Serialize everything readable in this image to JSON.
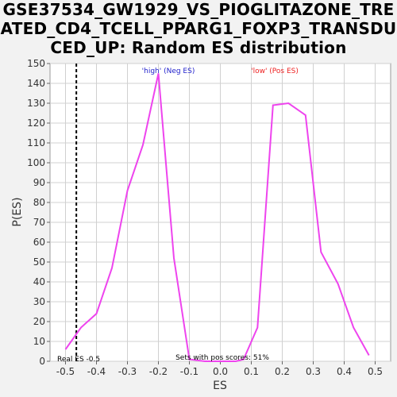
{
  "title_lines": [
    "GSE37534_GW1929_VS_PIOGLITAZONE_TRE",
    "ATED_CD4_TCELL_PPARG1_FOXP3_TRANSDU",
    "CED_UP: Random ES distribution"
  ],
  "legend": {
    "high": "'high' (Neg ES)",
    "low": "'low' (Pos ES)",
    "high_color": "#2222cc",
    "low_color": "#ee2222"
  },
  "annotations": {
    "real_es": "Real ES -0.5",
    "pos_scores": "Sets with pos scores: 51%"
  },
  "colors": {
    "line": "#ee44ee",
    "plot_bg": "#ffffff",
    "grid": "#d0d0d0"
  },
  "chart_data": {
    "type": "line",
    "xlabel": "ES",
    "ylabel": "P(ES)",
    "xlim": [
      -0.55,
      0.55
    ],
    "ylim": [
      0,
      150
    ],
    "xticks": [
      -0.5,
      -0.4,
      -0.3,
      -0.2,
      -0.1,
      0.0,
      0.1,
      0.2,
      0.3,
      0.4,
      0.5
    ],
    "xtick_labels": [
      "-0.5",
      "-0.4",
      "-0.3",
      "-0.2",
      "-0.1",
      "0.0",
      "0.1",
      "0.2",
      "0.3",
      "0.4",
      "0.5"
    ],
    "yticks": [
      0,
      10,
      20,
      30,
      40,
      50,
      60,
      70,
      80,
      90,
      100,
      110,
      120,
      130,
      140,
      150
    ],
    "real_es_value": -0.465,
    "grid": true,
    "series": [
      {
        "x": [
          -0.5,
          -0.45,
          -0.4,
          -0.35,
          -0.3,
          -0.25,
          -0.2,
          -0.15,
          -0.1,
          -0.05,
          0.0,
          0.05,
          0.075,
          0.12,
          0.17,
          0.22,
          0.275,
          0.325,
          0.38,
          0.43,
          0.48
        ],
        "y": [
          6,
          17,
          24,
          47,
          86,
          109,
          145,
          52,
          1,
          0,
          0,
          0,
          1,
          17,
          129,
          130,
          124,
          55,
          39,
          17,
          3
        ]
      }
    ]
  }
}
